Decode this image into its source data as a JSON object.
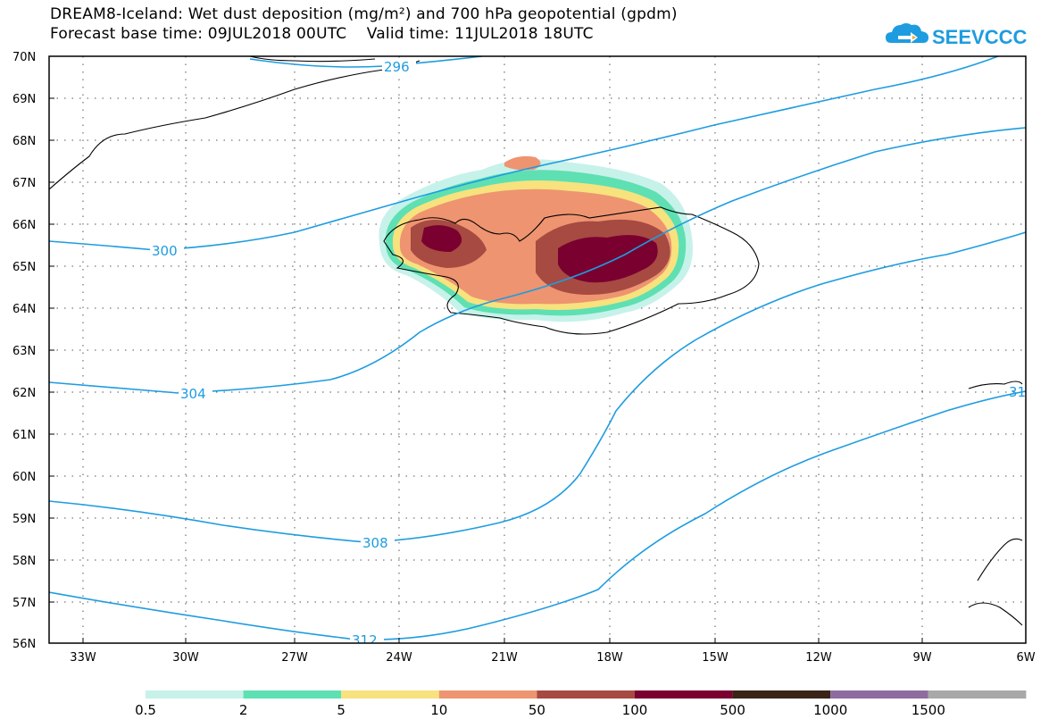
{
  "header": {
    "title_line1": "DREAM8-Iceland: Wet dust deposition (mg/m²) and 700 hPa geopotential (gpdm)",
    "title_line2": "Forecast base time: 09JUL2018 00UTC    Valid time: 11JUL2018 18UTC"
  },
  "logo": {
    "text": "SEEVCCC",
    "icon": "cloud-arrow-icon",
    "color": "#1e9ce0"
  },
  "map": {
    "lon_range": [
      -34.5,
      -6
    ],
    "lat_range": [
      56,
      70
    ],
    "lat_ticks": [
      "56N",
      "57N",
      "58N",
      "59N",
      "60N",
      "61N",
      "62N",
      "63N",
      "64N",
      "65N",
      "66N",
      "67N",
      "68N",
      "69N",
      "70N"
    ],
    "lon_ticks": [
      "33W",
      "30W",
      "27W",
      "24W",
      "21W",
      "18W",
      "15W",
      "12W",
      "9W",
      "6W"
    ],
    "contour_color": "#1e9ce0",
    "contour_labels": [
      "296",
      "300",
      "304",
      "308",
      "312",
      "31"
    ]
  },
  "legend": {
    "colors": [
      "#c6f2ea",
      "#5ee0b2",
      "#f7e27e",
      "#ee9470",
      "#a64a42",
      "#7a0030",
      "#3a2418",
      "#8e6ca0",
      "#a8a8a8"
    ],
    "labels": [
      "0.5",
      "2",
      "5",
      "10",
      "50",
      "100",
      "500",
      "1000",
      "1500"
    ]
  }
}
